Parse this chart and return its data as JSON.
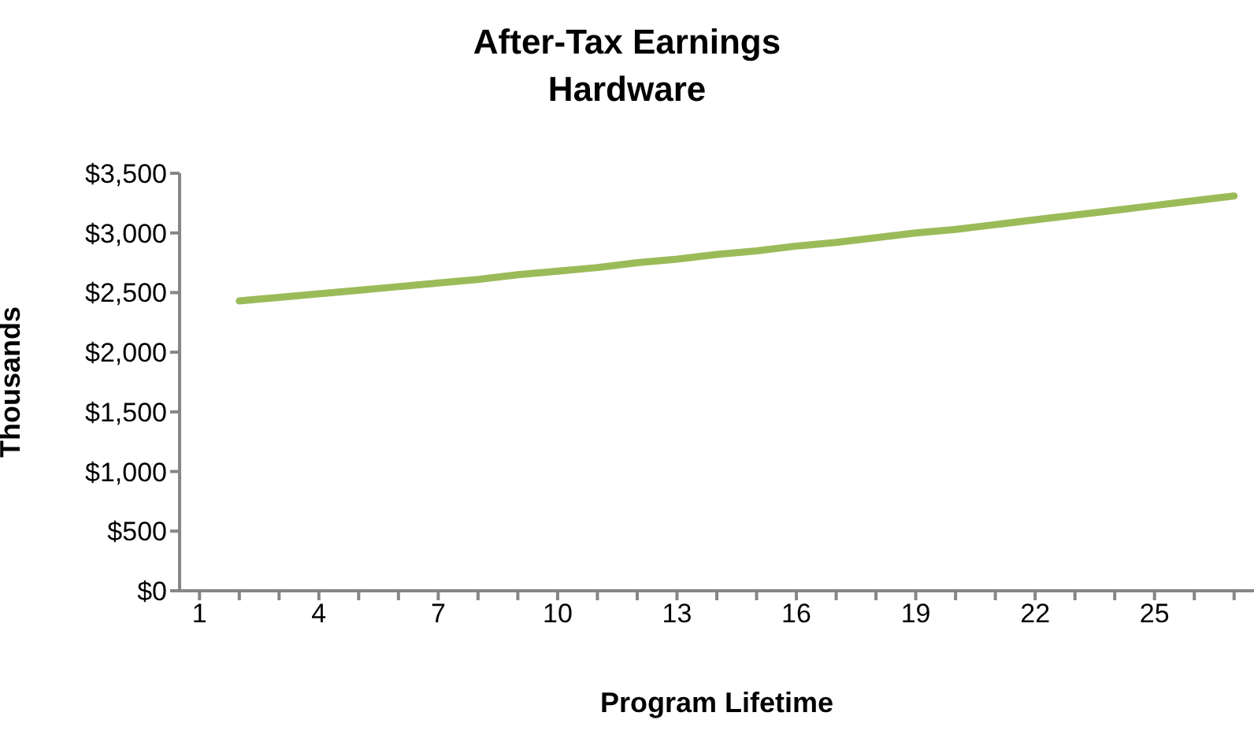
{
  "chart_data": {
    "type": "line",
    "title": "After-Tax Earnings",
    "subtitle": "Hardware",
    "xlabel": "Program Lifetime",
    "ylabel": "Thousands",
    "categories": [
      "1",
      null,
      null,
      "4",
      null,
      null,
      "7",
      null,
      null,
      "10",
      null,
      null,
      "13",
      null,
      null,
      "16",
      null,
      null,
      "19",
      null,
      null,
      "22",
      null,
      null,
      "25",
      null,
      null
    ],
    "series": [
      {
        "color": "#9bbb59",
        "values": [
          null,
          2430,
          2460,
          2490,
          2520,
          2550,
          2580,
          2610,
          2650,
          2680,
          2710,
          2750,
          2780,
          2820,
          2850,
          2890,
          2920,
          2960,
          3000,
          3030,
          3070,
          3110,
          3150,
          3190,
          3230,
          3270,
          3310
        ]
      }
    ],
    "ylim": [
      0,
      3500
    ],
    "yticks": [
      {
        "value": 0,
        "label": "$0"
      },
      {
        "value": 500,
        "label": "$500"
      },
      {
        "value": 1000,
        "label": "$1,000"
      },
      {
        "value": 1500,
        "label": "$1,500"
      },
      {
        "value": 2000,
        "label": "$2,000"
      },
      {
        "value": 2500,
        "label": "$2,500"
      },
      {
        "value": 3000,
        "label": "$3,000"
      },
      {
        "value": 3500,
        "label": "$3,500"
      }
    ],
    "grid": false,
    "legend": false,
    "marker": "none",
    "line_style": "solid"
  }
}
